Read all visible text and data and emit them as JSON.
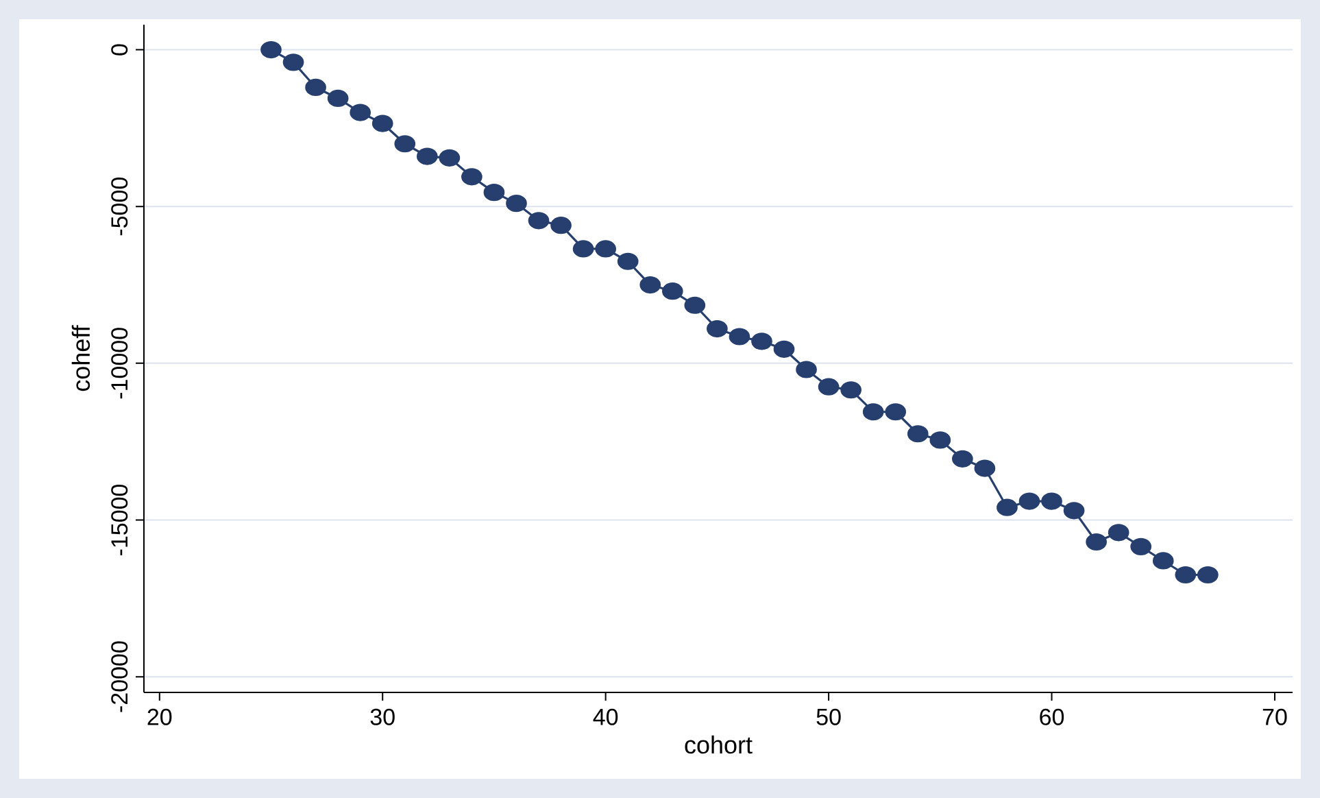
{
  "chart_data": {
    "type": "line",
    "xlabel": "cohort",
    "ylabel": "coheff",
    "x": [
      25,
      26,
      27,
      28,
      29,
      30,
      31,
      32,
      33,
      34,
      35,
      36,
      37,
      38,
      39,
      40,
      41,
      42,
      43,
      44,
      45,
      46,
      47,
      48,
      49,
      50,
      51,
      52,
      53,
      54,
      55,
      56,
      57,
      58,
      59,
      60,
      61,
      62,
      63,
      64,
      65,
      66,
      67
    ],
    "series": [
      {
        "color": "#263f6e",
        "values": [
          0,
          -400,
          -1200,
          -1550,
          -2000,
          -2350,
          -3000,
          -3400,
          -3450,
          -4050,
          -4550,
          -4900,
          -5450,
          -5600,
          -6350,
          -6350,
          -6750,
          -7500,
          -7700,
          -8150,
          -8900,
          -9150,
          -9300,
          -9550,
          -10200,
          -10750,
          -10850,
          -11550,
          -11550,
          -12250,
          -12450,
          -13050,
          -13350,
          -14600,
          -14400,
          -14400,
          -14700,
          -15700,
          -15400,
          -15850,
          -16300,
          -16750,
          -16750
        ]
      }
    ],
    "xlim": [
      19.3,
      70.8
    ],
    "ylim": [
      -20500,
      800
    ],
    "xticks": [
      20,
      30,
      40,
      50,
      60,
      70
    ],
    "yticks": [
      -20000,
      -15000,
      -10000,
      -5000,
      0
    ],
    "grid": "y",
    "marker": "circle",
    "line_style": "solid"
  }
}
